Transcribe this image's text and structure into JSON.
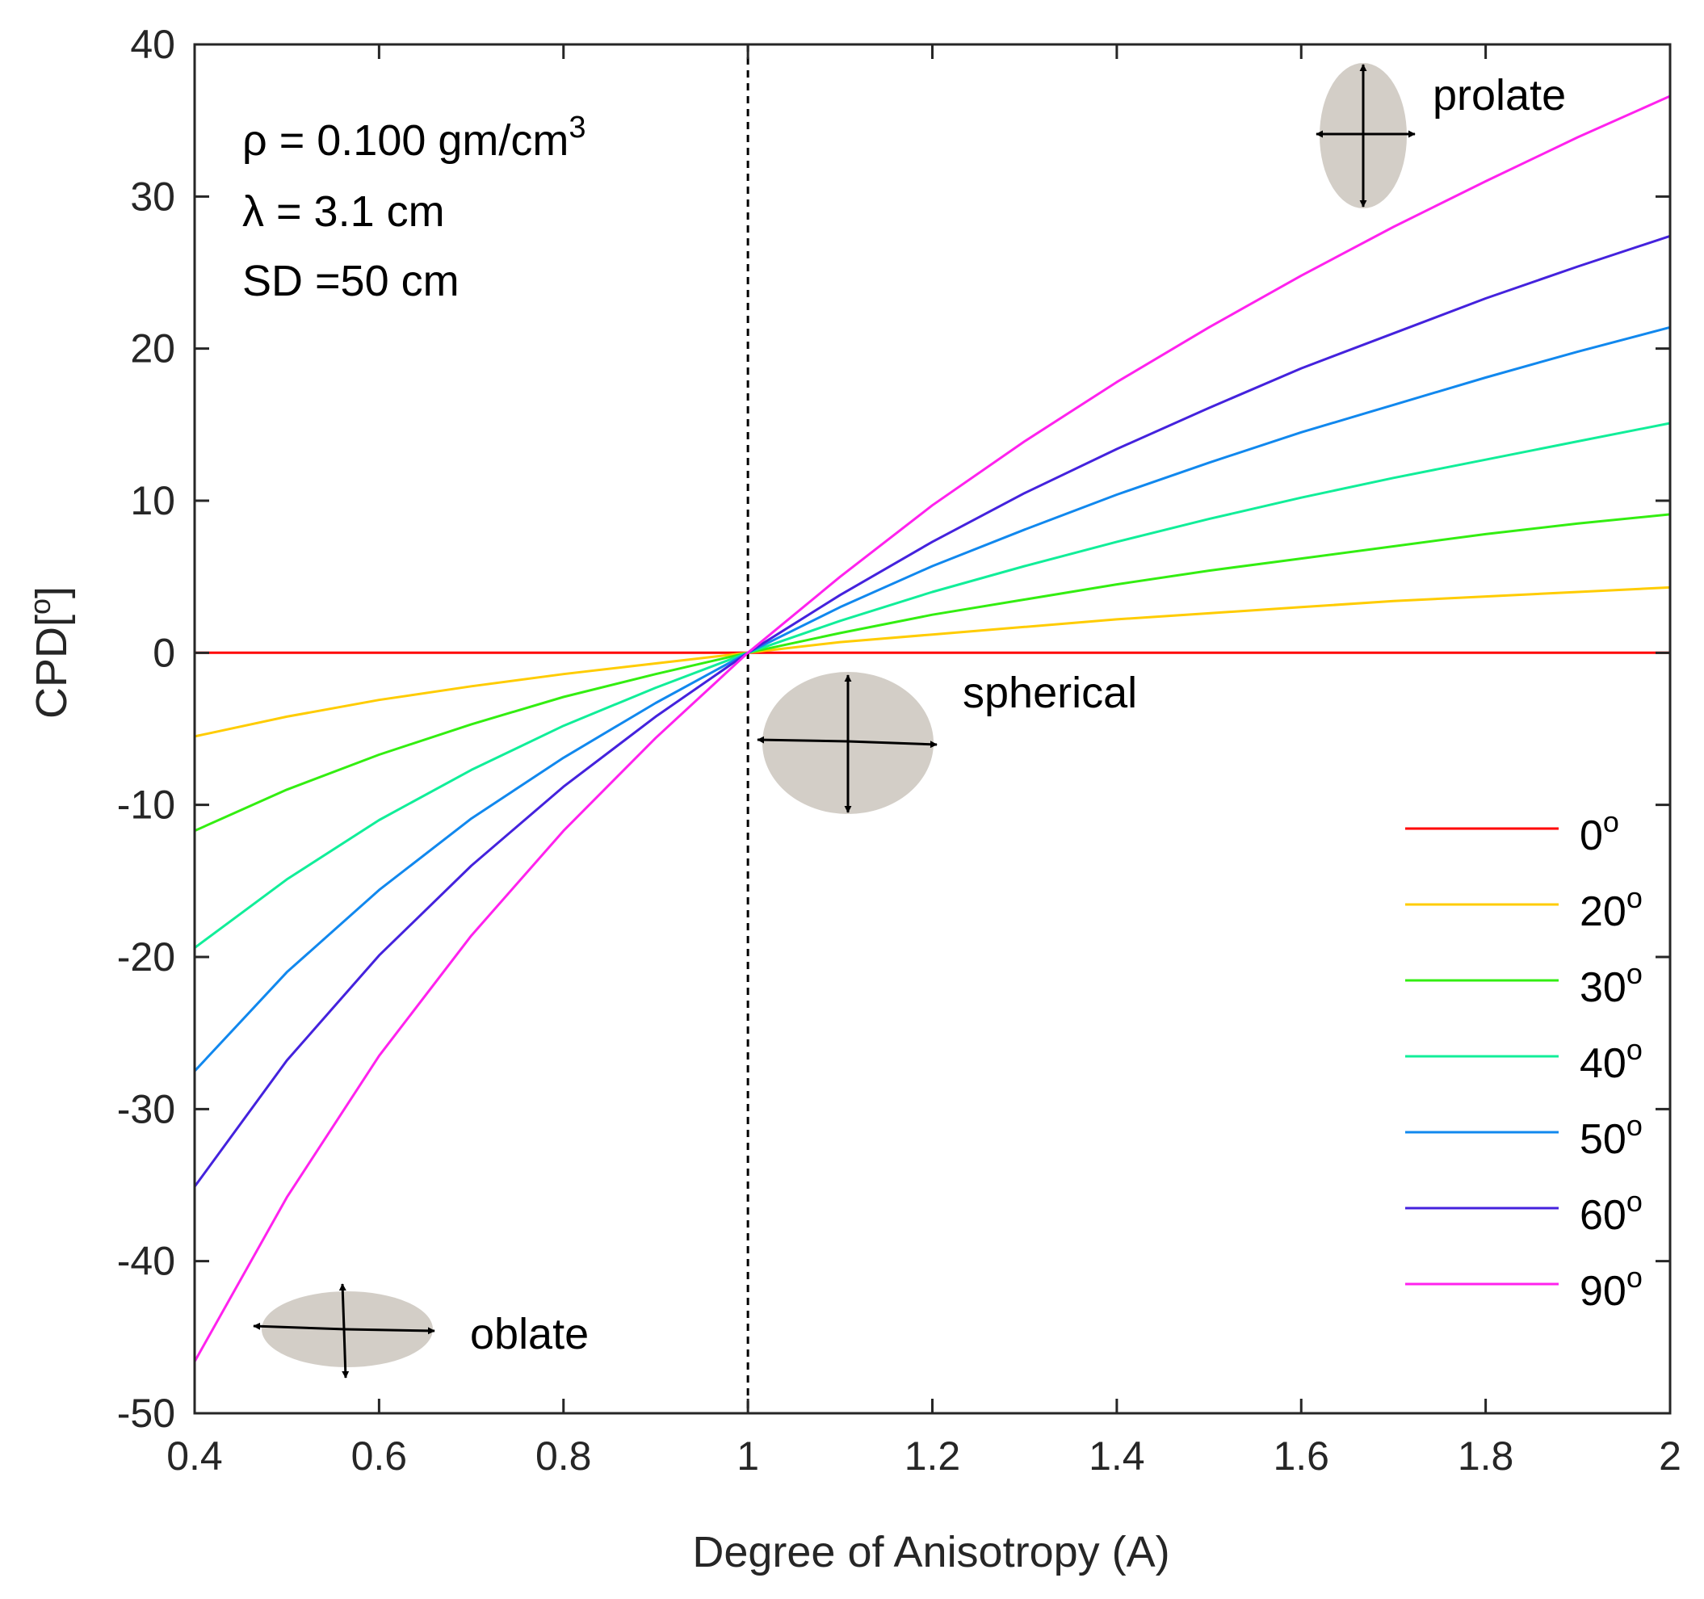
{
  "chart_data": {
    "type": "line",
    "xlabel": "Degree of Anisotropy (A)",
    "ylabel": "CPD[",
    "ylabel_sup": "o",
    "ylabel_close": "]",
    "xlim": [
      0.4,
      2
    ],
    "ylim": [
      -50,
      40
    ],
    "x_ticks": [
      0.4,
      0.6,
      0.8,
      1,
      1.2,
      1.4,
      1.6,
      1.8,
      2
    ],
    "x_tick_labels": [
      "0.4",
      "0.6",
      "0.8",
      "1",
      "1.2",
      "1.4",
      "1.6",
      "1.8",
      "2"
    ],
    "y_ticks": [
      -50,
      -40,
      -30,
      -20,
      -10,
      0,
      10,
      20,
      30,
      40
    ],
    "y_tick_labels": [
      "-50",
      "-40",
      "-30",
      "-20",
      "-10",
      "0",
      "10",
      "20",
      "30",
      "40"
    ],
    "grid": false,
    "reference_line": {
      "x": 1,
      "style": "dashed",
      "color": "#000000"
    },
    "x": [
      0.4,
      0.5,
      0.6,
      0.7,
      0.8,
      0.9,
      1.0,
      1.1,
      1.2,
      1.3,
      1.4,
      1.5,
      1.6,
      1.7,
      1.8,
      1.9,
      2.0
    ],
    "series": [
      {
        "name": "0",
        "sup": "o",
        "color": "#ff0000",
        "values": [
          0,
          0,
          0,
          0,
          0,
          0,
          0,
          0,
          0,
          0,
          0,
          0,
          0,
          0,
          0,
          0,
          0
        ]
      },
      {
        "name": "20",
        "sup": "o",
        "color": "#ffcc00",
        "values": [
          -5.5,
          -4.2,
          -3.1,
          -2.2,
          -1.4,
          -0.7,
          0,
          0.7,
          1.2,
          1.7,
          2.2,
          2.6,
          3.0,
          3.4,
          3.7,
          4.0,
          4.3
        ]
      },
      {
        "name": "30",
        "sup": "o",
        "color": "#33ee11",
        "values": [
          -11.7,
          -9.0,
          -6.7,
          -4.7,
          -2.9,
          -1.4,
          0,
          1.3,
          2.5,
          3.5,
          4.5,
          5.4,
          6.2,
          7.0,
          7.8,
          8.5,
          9.1
        ]
      },
      {
        "name": "40",
        "sup": "o",
        "color": "#11ee99",
        "values": [
          -19.4,
          -14.9,
          -11.0,
          -7.7,
          -4.8,
          -2.3,
          0,
          2.1,
          4.0,
          5.7,
          7.3,
          8.8,
          10.2,
          11.5,
          12.7,
          13.9,
          15.1
        ]
      },
      {
        "name": "50",
        "sup": "o",
        "color": "#1188ee",
        "values": [
          -27.5,
          -21.0,
          -15.6,
          -10.9,
          -6.9,
          -3.3,
          0,
          3.0,
          5.7,
          8.1,
          10.4,
          12.5,
          14.5,
          16.3,
          18.1,
          19.8,
          21.4
        ]
      },
      {
        "name": "60",
        "sup": "o",
        "color": "#4422dd",
        "values": [
          -35.1,
          -26.8,
          -19.9,
          -14.0,
          -8.8,
          -4.2,
          0,
          3.8,
          7.3,
          10.5,
          13.4,
          16.1,
          18.7,
          21.0,
          23.3,
          25.4,
          27.4
        ]
      },
      {
        "name": "90",
        "sup": "o",
        "color": "#ff22ee",
        "values": [
          -46.6,
          -35.8,
          -26.5,
          -18.6,
          -11.7,
          -5.6,
          0,
          5.0,
          9.7,
          13.9,
          17.8,
          21.4,
          24.8,
          28.0,
          31.0,
          33.9,
          36.6
        ]
      }
    ],
    "legend_placement": "lower-right",
    "annotations": {
      "rho": "ρ = 0.100 gm/cm",
      "rho_sup": "3",
      "lambda": "λ = 3.1 cm",
      "sd": "SD =50 cm",
      "prolate": "prolate",
      "spherical": "spherical",
      "oblate": "oblate"
    }
  }
}
